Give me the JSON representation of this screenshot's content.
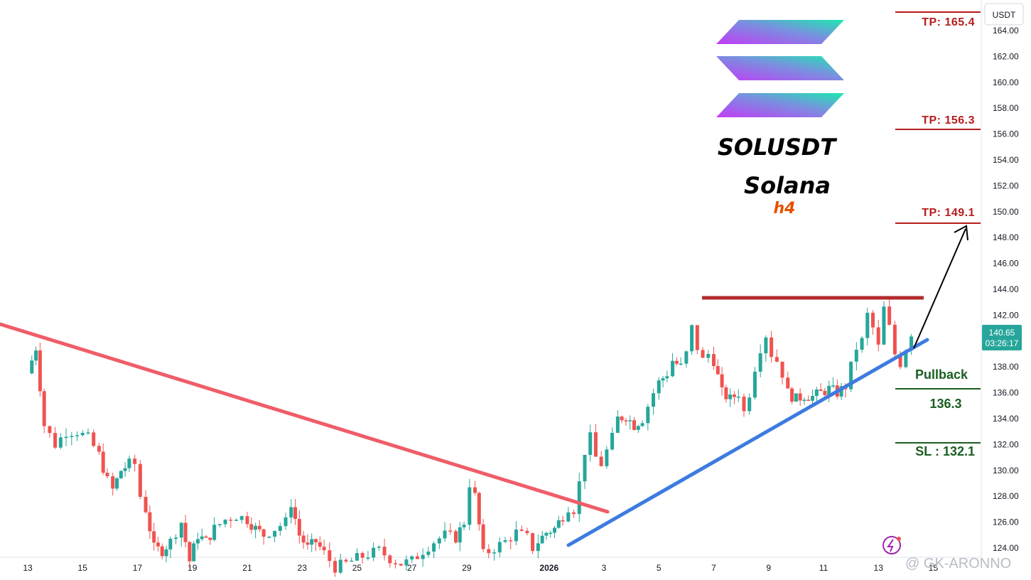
{
  "chart_data": {
    "type": "candlestick",
    "currency_label": "USDT",
    "symbol": "SOLUSDT",
    "name": "Solana",
    "timeframe": "h4",
    "y_ticks": [
      "124.00",
      "126.00",
      "128.00",
      "130.00",
      "132.00",
      "134.00",
      "136.00",
      "138.00",
      "140.00",
      "142.00",
      "144.00",
      "146.00",
      "148.00",
      "150.00",
      "152.00",
      "154.00",
      "156.00",
      "158.00",
      "160.00",
      "162.00",
      "164.00"
    ],
    "x_ticks": [
      "13",
      "15",
      "17",
      "19",
      "21",
      "23",
      "25",
      "27",
      "29",
      "2026",
      "3",
      "5",
      "7",
      "9",
      "11",
      "13",
      "15"
    ],
    "last_price": "140.65",
    "countdown": "03:26:17",
    "levels": {
      "tp3": {
        "label": "TP: 165.4",
        "value": 165.4
      },
      "tp2": {
        "label": "TP: 156.3",
        "value": 156.3
      },
      "tp1": {
        "label": "TP: 149.1",
        "value": 149.1
      },
      "entry": {
        "label": "Pullback",
        "value_label": "136.3",
        "value": 136.3
      },
      "sl": {
        "label": "SL : 132.1",
        "value": 132.1
      },
      "resistance": 143.3
    },
    "close_path": [
      [
        13.0,
        137.5
      ],
      [
        13.3,
        139.5
      ],
      [
        13.6,
        133.5
      ],
      [
        14.0,
        132.0
      ],
      [
        14.4,
        133.0
      ],
      [
        14.8,
        133.0
      ],
      [
        15.2,
        132.5
      ],
      [
        15.6,
        131.2
      ],
      [
        15.9,
        129.2
      ],
      [
        16.1,
        128.5
      ],
      [
        16.4,
        130.0
      ],
      [
        16.7,
        130.5
      ],
      [
        16.9,
        130.5
      ],
      [
        17.1,
        128.0
      ],
      [
        17.3,
        127.0
      ],
      [
        17.6,
        124.0
      ],
      [
        17.9,
        123.8
      ],
      [
        18.2,
        124.5
      ],
      [
        18.6,
        126.0
      ],
      [
        18.9,
        123.0
      ],
      [
        19.2,
        125.0
      ],
      [
        19.5,
        124.5
      ],
      [
        19.8,
        125.5
      ],
      [
        20.2,
        126.2
      ],
      [
        20.6,
        126.5
      ],
      [
        21.0,
        126.2
      ],
      [
        21.3,
        125.5
      ],
      [
        21.6,
        125.0
      ],
      [
        22.0,
        125.5
      ],
      [
        22.4,
        126.0
      ],
      [
        22.6,
        127.5
      ],
      [
        22.9,
        125.0
      ],
      [
        23.2,
        124.0
      ],
      [
        23.5,
        124.5
      ],
      [
        23.8,
        123.6
      ],
      [
        24.2,
        122.5
      ],
      [
        24.6,
        122.8
      ],
      [
        25.0,
        123.2
      ],
      [
        25.4,
        123.5
      ],
      [
        25.8,
        123.8
      ],
      [
        26.2,
        123.2
      ],
      [
        26.6,
        122.8
      ],
      [
        27.0,
        123.0
      ],
      [
        27.4,
        123.8
      ],
      [
        27.8,
        124.5
      ],
      [
        28.2,
        125.0
      ],
      [
        28.6,
        124.8
      ],
      [
        28.9,
        126.0
      ],
      [
        29.1,
        129.0
      ],
      [
        29.3,
        128.0
      ],
      [
        29.6,
        123.5
      ],
      [
        30.0,
        124.0
      ],
      [
        30.4,
        124.5
      ],
      [
        30.8,
        125.2
      ],
      [
        31.2,
        124.8
      ],
      [
        31.4,
        124.0
      ],
      [
        31.6,
        124.5
      ],
      [
        31.9,
        125.2
      ],
      [
        32.2,
        125.5
      ],
      [
        32.5,
        126.5
      ],
      [
        32.7,
        127.2
      ],
      [
        32.9,
        127.0
      ],
      [
        33.1,
        129.0
      ],
      [
        33.3,
        131.5
      ],
      [
        33.5,
        132.5
      ],
      [
        33.7,
        131.0
      ],
      [
        33.9,
        130.5
      ],
      [
        34.1,
        131.5
      ],
      [
        34.3,
        132.5
      ],
      [
        34.5,
        134.0
      ],
      [
        34.8,
        134.2
      ],
      [
        35.1,
        133.5
      ],
      [
        35.4,
        134.0
      ],
      [
        35.6,
        135.0
      ],
      [
        35.8,
        136.0
      ],
      [
        36.0,
        136.8
      ],
      [
        36.3,
        137.5
      ],
      [
        36.5,
        138.5
      ],
      [
        36.8,
        138.0
      ],
      [
        37.0,
        139.0
      ],
      [
        37.2,
        141.0
      ],
      [
        37.4,
        139.5
      ],
      [
        37.6,
        138.5
      ],
      [
        37.8,
        139.0
      ],
      [
        38.0,
        138.5
      ],
      [
        38.3,
        136.0
      ],
      [
        38.6,
        135.5
      ],
      [
        38.9,
        136.0
      ],
      [
        39.1,
        134.5
      ],
      [
        39.3,
        136.0
      ],
      [
        39.5,
        138.0
      ],
      [
        39.7,
        139.5
      ],
      [
        39.9,
        140.5
      ],
      [
        40.1,
        139.0
      ],
      [
        40.3,
        138.5
      ],
      [
        40.5,
        137.5
      ],
      [
        40.7,
        136.0
      ],
      [
        41.0,
        135.5
      ],
      [
        41.3,
        135.8
      ],
      [
        41.6,
        135.7
      ],
      [
        41.9,
        136.0
      ],
      [
        42.2,
        136.3
      ],
      [
        42.5,
        136.0
      ],
      [
        42.8,
        136.5
      ],
      [
        43.0,
        138.0
      ],
      [
        43.2,
        139.5
      ],
      [
        43.4,
        140.0
      ],
      [
        43.6,
        142.0
      ],
      [
        43.8,
        141.0
      ],
      [
        44.0,
        139.5
      ],
      [
        44.2,
        142.5
      ],
      [
        44.4,
        141.0
      ],
      [
        44.6,
        139.0
      ],
      [
        44.8,
        138.3
      ],
      [
        45.0,
        139.5
      ],
      [
        45.2,
        140.65
      ]
    ]
  }
}
